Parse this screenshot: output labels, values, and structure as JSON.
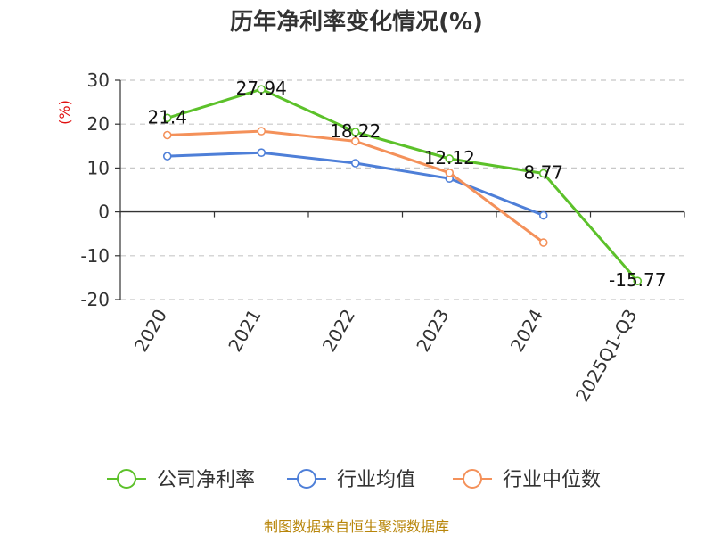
{
  "chart_data": {
    "type": "line",
    "title": "历年净利率变化情况(%)",
    "ylabel": "(%)",
    "categories": [
      "2020",
      "2021",
      "2022",
      "2023",
      "2024",
      "2025Q1-Q3"
    ],
    "ylim": [
      -20,
      30
    ],
    "yticks": [
      "30",
      "20",
      "10",
      "0",
      "-10",
      "-20"
    ],
    "ytick_values": [
      30,
      20,
      10,
      0,
      -10,
      -20
    ],
    "grid": true,
    "legend_position": "bottom",
    "series": [
      {
        "name": "公司净利率",
        "color": "#5cc12a",
        "values": [
          21.4,
          27.94,
          18.22,
          12.12,
          8.77,
          -15.77
        ],
        "labels": [
          "21.4",
          "27.94",
          "18.22",
          "12.12",
          "8.77",
          "-15.77"
        ]
      },
      {
        "name": "行业均值",
        "color": "#4e7fd8",
        "values": [
          12.7,
          13.5,
          11.1,
          7.6,
          -0.8,
          null
        ]
      },
      {
        "name": "行业中位数",
        "color": "#f4915a",
        "values": [
          17.5,
          18.4,
          16.1,
          8.9,
          -7.0,
          null
        ]
      }
    ]
  },
  "source_text": "制图数据来自恒生聚源数据库"
}
